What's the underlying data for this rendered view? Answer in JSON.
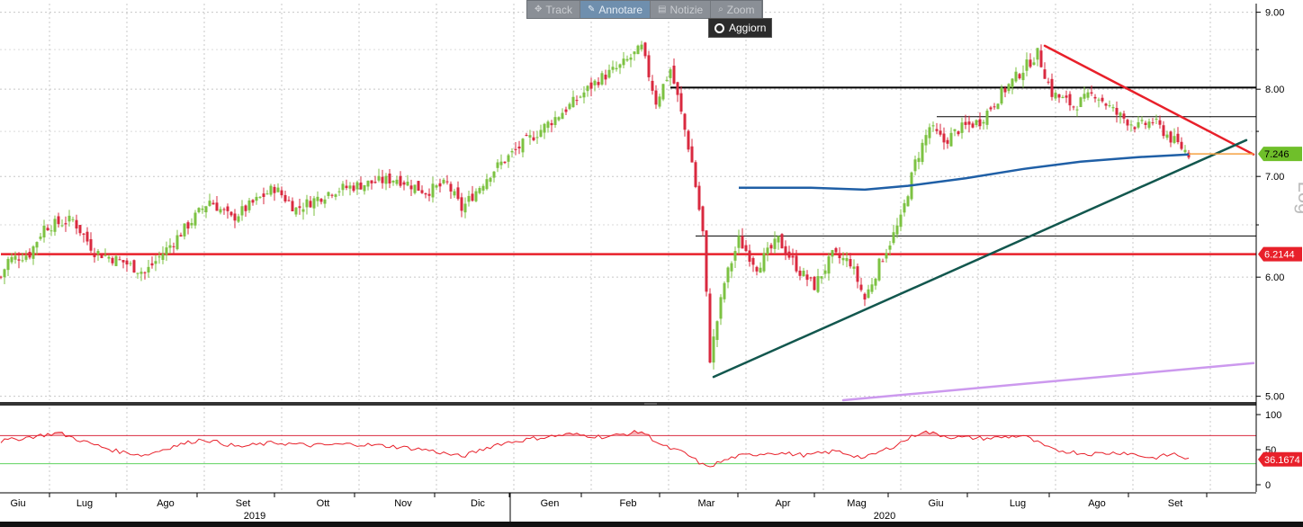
{
  "toolbar": {
    "track": "Track",
    "annotate": "Annotare",
    "news": "Notizie",
    "zoom": "Zoom",
    "update": "Aggiorn",
    "icons": {
      "track": "crosshair-icon",
      "annotate": "pencil-icon",
      "news": "news-icon",
      "zoom": "magnifier-icon",
      "update": "radio-icon"
    }
  },
  "chart_data": {
    "type": "candlestick",
    "scale": "log",
    "scale_label": "Log",
    "price_axis": {
      "ticks": [
        "9.00",
        "8.00",
        "7.00",
        "6.00",
        "5.00"
      ],
      "range": [
        4.97,
        9.12
      ]
    },
    "last_price": {
      "value": "7.246",
      "color": "#6fbf2a"
    },
    "level_label": {
      "value": "6.2144",
      "color": "#e8202a"
    },
    "months": [
      "Giu",
      "Lug",
      "Ago",
      "Set",
      "Ott",
      "Nov",
      "Dic",
      "Gen",
      "Feb",
      "Mar",
      "Apr",
      "Mag",
      "Giu",
      "Lug",
      "Ago",
      "Set"
    ],
    "years": [
      "2019",
      "2020"
    ],
    "series_anchors": [
      {
        "d": 0,
        "p": 6.0
      },
      {
        "d": 2,
        "p": 6.16
      },
      {
        "d": 8,
        "p": 6.22
      },
      {
        "d": 12,
        "p": 6.48
      },
      {
        "d": 20,
        "p": 6.55
      },
      {
        "d": 26,
        "p": 6.24
      },
      {
        "d": 34,
        "p": 6.14
      },
      {
        "d": 40,
        "p": 6.04
      },
      {
        "d": 47,
        "p": 6.3
      },
      {
        "d": 58,
        "p": 6.75
      },
      {
        "d": 64,
        "p": 6.56
      },
      {
        "d": 76,
        "p": 6.88
      },
      {
        "d": 82,
        "p": 6.66
      },
      {
        "d": 92,
        "p": 6.85
      },
      {
        "d": 101,
        "p": 6.92
      },
      {
        "d": 110,
        "p": 6.98
      },
      {
        "d": 118,
        "p": 6.84
      },
      {
        "d": 124,
        "p": 6.92
      },
      {
        "d": 128,
        "p": 6.66
      },
      {
        "d": 136,
        "p": 7.04
      },
      {
        "d": 144,
        "p": 7.32
      },
      {
        "d": 150,
        "p": 7.52
      },
      {
        "d": 158,
        "p": 7.8
      },
      {
        "d": 166,
        "p": 8.12
      },
      {
        "d": 172,
        "p": 8.28
      },
      {
        "d": 178,
        "p": 8.52
      },
      {
        "d": 182,
        "p": 7.85
      },
      {
        "d": 186,
        "p": 8.25
      },
      {
        "d": 188,
        "p": 7.9
      },
      {
        "d": 192,
        "p": 7.15
      },
      {
        "d": 195,
        "p": 6.42
      },
      {
        "d": 197,
        "p": 5.3
      },
      {
        "d": 201,
        "p": 5.95
      },
      {
        "d": 205,
        "p": 6.35
      },
      {
        "d": 210,
        "p": 6.1
      },
      {
        "d": 216,
        "p": 6.35
      },
      {
        "d": 222,
        "p": 6.05
      },
      {
        "d": 226,
        "p": 5.92
      },
      {
        "d": 231,
        "p": 6.2
      },
      {
        "d": 236,
        "p": 6.14
      },
      {
        "d": 240,
        "p": 5.8
      },
      {
        "d": 244,
        "p": 6.12
      },
      {
        "d": 250,
        "p": 6.55
      },
      {
        "d": 254,
        "p": 7.15
      },
      {
        "d": 258,
        "p": 7.55
      },
      {
        "d": 262,
        "p": 7.38
      },
      {
        "d": 266,
        "p": 7.52
      },
      {
        "d": 272,
        "p": 7.62
      },
      {
        "d": 278,
        "p": 7.95
      },
      {
        "d": 284,
        "p": 8.25
      },
      {
        "d": 288,
        "p": 8.45
      },
      {
        "d": 292,
        "p": 7.95
      },
      {
        "d": 298,
        "p": 7.8
      },
      {
        "d": 304,
        "p": 7.95
      },
      {
        "d": 310,
        "p": 7.7
      },
      {
        "d": 316,
        "p": 7.55
      },
      {
        "d": 320,
        "p": 7.62
      },
      {
        "d": 325,
        "p": 7.42
      },
      {
        "d": 330,
        "p": 7.25
      }
    ],
    "horizontal_lines": [
      {
        "price": 8.02,
        "from_day": 186,
        "color": "#000000",
        "width": 2
      },
      {
        "price": 7.67,
        "from_day": 260,
        "color": "#000000",
        "width": 1
      },
      {
        "price": 6.39,
        "from_day": 193,
        "color": "#000000",
        "width": 1
      },
      {
        "price": 6.2144,
        "from_day": 0,
        "color": "#e8202a",
        "width": 2.5
      }
    ],
    "trend_lines": [
      {
        "from": {
          "d": 290,
          "p": 8.55
        },
        "to": {
          "d": 348,
          "p": 7.24
        },
        "color": "#e8202a",
        "width": 2.5
      },
      {
        "from": {
          "d": 198,
          "p": 5.15
        },
        "to": {
          "d": 346,
          "p": 7.4
        },
        "color": "#12574e",
        "width": 2.5
      },
      {
        "from": {
          "d": 234,
          "p": 4.97
        },
        "to": {
          "d": 348,
          "p": 5.26
        },
        "color": "#cc99ee",
        "width": 2.5
      }
    ],
    "moving_average": {
      "color": "#1f5fa6",
      "points": [
        {
          "d": 205,
          "p": 6.88
        },
        {
          "d": 225,
          "p": 6.88
        },
        {
          "d": 240,
          "p": 6.86
        },
        {
          "d": 252,
          "p": 6.9
        },
        {
          "d": 268,
          "p": 6.98
        },
        {
          "d": 284,
          "p": 7.08
        },
        {
          "d": 300,
          "p": 7.16
        },
        {
          "d": 316,
          "p": 7.21
        },
        {
          "d": 330,
          "p": 7.24
        }
      ]
    },
    "support_segment": {
      "from_day": 330,
      "to_day": 348,
      "price": 7.246,
      "color": "#f5a040"
    },
    "rsi": {
      "ticks": [
        "100",
        "50",
        "0"
      ],
      "upper_line": 70,
      "lower_line": 30,
      "label": "36.1674",
      "color": "#e8202a",
      "anchors": [
        {
          "d": 0,
          "v": 62
        },
        {
          "d": 8,
          "v": 68
        },
        {
          "d": 16,
          "v": 74
        },
        {
          "d": 24,
          "v": 60
        },
        {
          "d": 32,
          "v": 48
        },
        {
          "d": 40,
          "v": 42
        },
        {
          "d": 48,
          "v": 55
        },
        {
          "d": 56,
          "v": 65
        },
        {
          "d": 66,
          "v": 54
        },
        {
          "d": 76,
          "v": 60
        },
        {
          "d": 86,
          "v": 56
        },
        {
          "d": 98,
          "v": 58
        },
        {
          "d": 108,
          "v": 55
        },
        {
          "d": 118,
          "v": 50
        },
        {
          "d": 128,
          "v": 40
        },
        {
          "d": 138,
          "v": 58
        },
        {
          "d": 148,
          "v": 66
        },
        {
          "d": 158,
          "v": 72
        },
        {
          "d": 168,
          "v": 68
        },
        {
          "d": 178,
          "v": 76
        },
        {
          "d": 184,
          "v": 55
        },
        {
          "d": 190,
          "v": 45
        },
        {
          "d": 196,
          "v": 25
        },
        {
          "d": 204,
          "v": 40
        },
        {
          "d": 214,
          "v": 46
        },
        {
          "d": 224,
          "v": 42
        },
        {
          "d": 232,
          "v": 48
        },
        {
          "d": 240,
          "v": 38
        },
        {
          "d": 248,
          "v": 55
        },
        {
          "d": 256,
          "v": 76
        },
        {
          "d": 264,
          "v": 68
        },
        {
          "d": 274,
          "v": 66
        },
        {
          "d": 284,
          "v": 70
        },
        {
          "d": 292,
          "v": 50
        },
        {
          "d": 302,
          "v": 44
        },
        {
          "d": 312,
          "v": 46
        },
        {
          "d": 320,
          "v": 38
        },
        {
          "d": 326,
          "v": 44
        },
        {
          "d": 330,
          "v": 36
        }
      ]
    }
  }
}
